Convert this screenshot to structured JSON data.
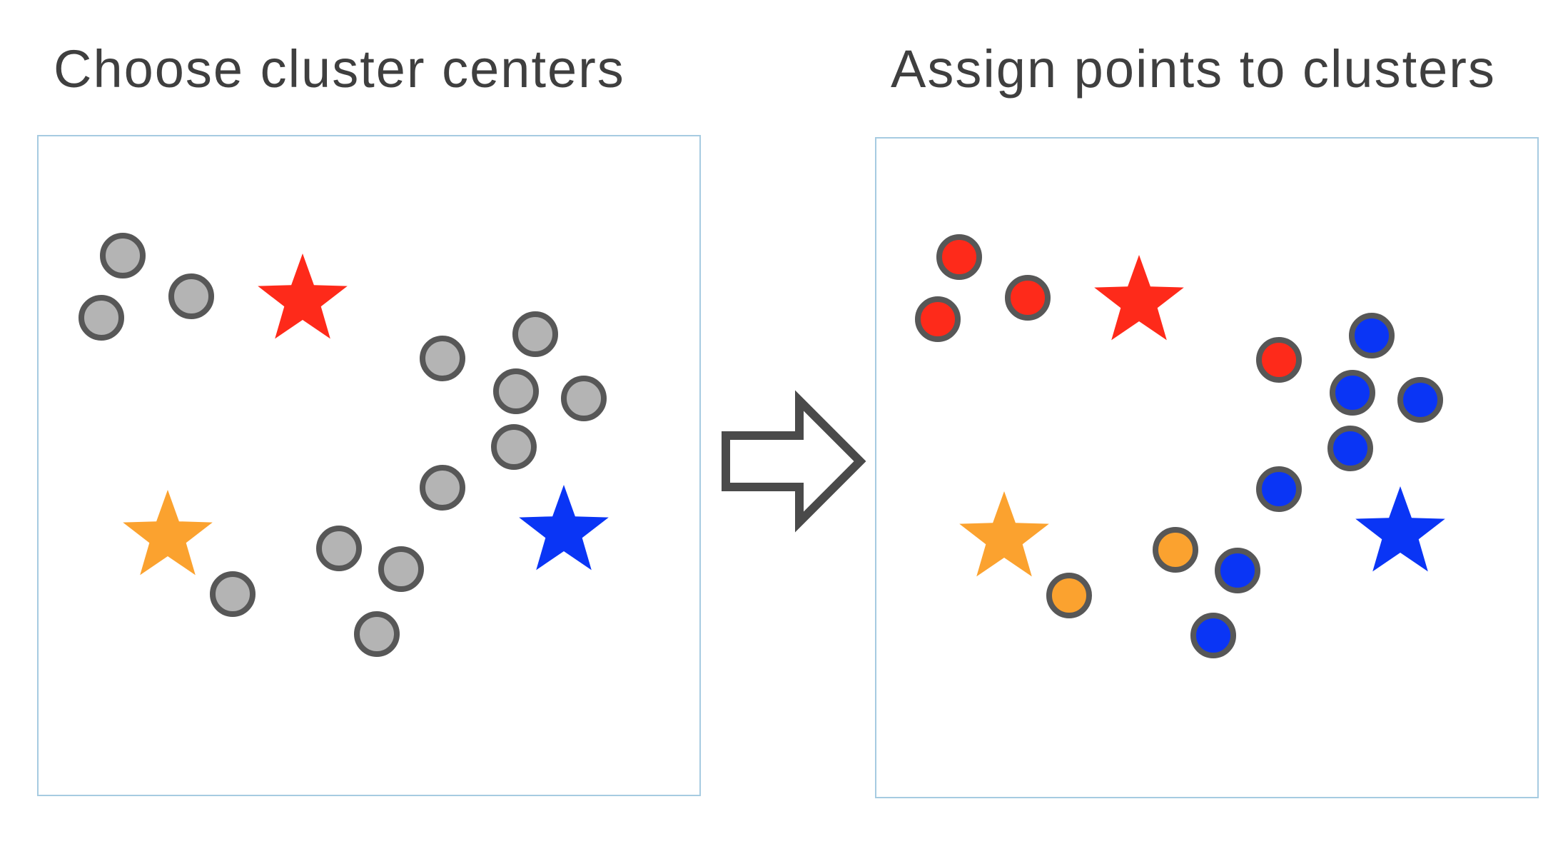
{
  "panels": {
    "left": {
      "title": "Choose cluster centers"
    },
    "right": {
      "title": "Assign points to clusters"
    }
  },
  "colors": {
    "red": "#fe2a1a",
    "orange": "#fba22f",
    "blue": "#0a35f5",
    "unassigned": "#b4b4b4",
    "point_outline": "#575757",
    "frame": "#a6cbe1",
    "arrow": "#4a4a4a",
    "text": "#3f3f3f"
  },
  "clusters": [
    {
      "id": "red",
      "center_label": "red-star"
    },
    {
      "id": "orange",
      "center_label": "orange-star"
    },
    {
      "id": "blue",
      "center_label": "blue-star"
    }
  ],
  "points": [
    {
      "id": 1,
      "cluster": "red"
    },
    {
      "id": 2,
      "cluster": "red"
    },
    {
      "id": 3,
      "cluster": "red"
    },
    {
      "id": 4,
      "cluster": "red"
    },
    {
      "id": 5,
      "cluster": "blue"
    },
    {
      "id": 6,
      "cluster": "blue"
    },
    {
      "id": 7,
      "cluster": "blue"
    },
    {
      "id": 8,
      "cluster": "blue"
    },
    {
      "id": 9,
      "cluster": "blue"
    },
    {
      "id": 10,
      "cluster": "orange"
    },
    {
      "id": 11,
      "cluster": "orange"
    },
    {
      "id": 12,
      "cluster": "blue"
    },
    {
      "id": 13,
      "cluster": "blue"
    }
  ]
}
